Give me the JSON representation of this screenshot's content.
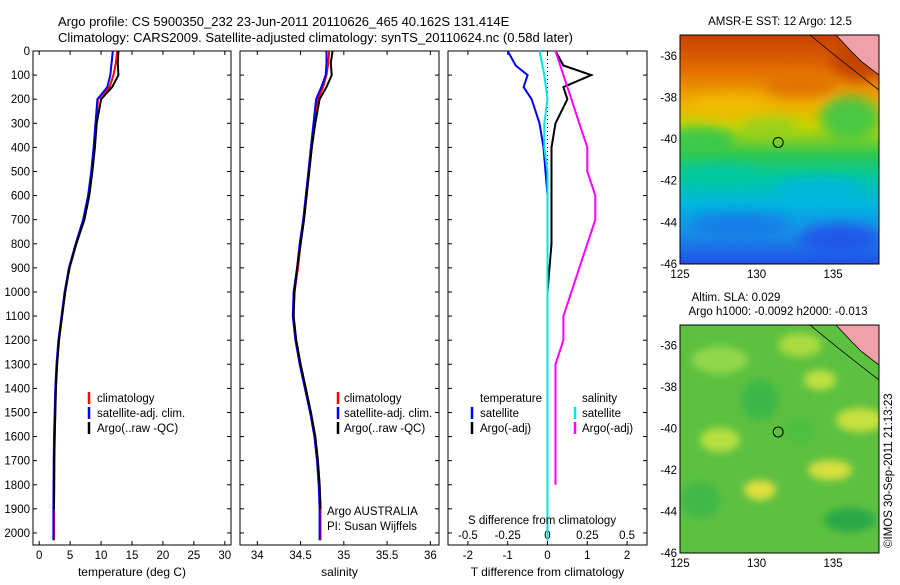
{
  "header": {
    "line1": "Argo profile: CS 5900350_232 23-Jun-2011 20110626_465 40.162S 131.414E",
    "line2": "Climatology: CARS2009. Satellite-adjusted climatology: synTS_20110624.nc (0.58d later)"
  },
  "watermark": "©IMOS 30-Sep-2011 21:13:23",
  "colors": {
    "climatology": "#ff0000",
    "satellite": "#0000ff",
    "argo": "#000000",
    "sal_satellite": "#00e5e5",
    "sal_argo": "#ff00ff"
  },
  "chart_data": [
    {
      "type": "line",
      "name": "temperature",
      "xlabel": "temperature (deg C)",
      "ylabel": "",
      "xlim": [
        -1,
        31
      ],
      "ylim": [
        2050,
        0
      ],
      "xticks": [
        0,
        5,
        10,
        15,
        20,
        25,
        30
      ],
      "yticks": [
        0,
        100,
        200,
        300,
        400,
        500,
        600,
        700,
        800,
        900,
        1000,
        1100,
        1200,
        1300,
        1400,
        1500,
        1600,
        1700,
        1800,
        1900,
        2000
      ],
      "legend": [
        "climatology",
        "satellite-adj. clim.",
        "Argo(..raw -QC)"
      ],
      "series": [
        {
          "name": "climatology",
          "color": "#ff0000",
          "x": [
            12.6,
            12.4,
            12.0,
            11.4,
            9.5,
            9.2,
            8.9,
            8.5,
            8.0,
            7.2,
            6.0,
            4.9,
            4.2,
            3.7,
            3.2,
            2.9,
            2.7,
            2.6,
            2.5,
            2.45,
            2.4,
            2.4
          ],
          "y": [
            0,
            50,
            100,
            150,
            200,
            300,
            400,
            500,
            600,
            700,
            800,
            900,
            1000,
            1100,
            1200,
            1300,
            1400,
            1500,
            1600,
            1700,
            1900,
            2030
          ]
        },
        {
          "name": "satellite-adj. clim.",
          "color": "#0000ff",
          "x": [
            11.9,
            11.7,
            11.5,
            11.0,
            9.4,
            9.1,
            8.8,
            8.4,
            7.9,
            7.1,
            5.9,
            4.8,
            4.1,
            3.6,
            3.1,
            2.8,
            2.6,
            2.5,
            2.4,
            2.35,
            2.3,
            2.3
          ],
          "y": [
            0,
            50,
            100,
            150,
            200,
            300,
            400,
            500,
            600,
            700,
            800,
            900,
            1000,
            1100,
            1200,
            1300,
            1400,
            1500,
            1600,
            1700,
            1900,
            2030
          ]
        },
        {
          "name": "Argo(..raw -QC)",
          "color": "#000000",
          "x": [
            12.8,
            12.7,
            12.8,
            11.8,
            10.0,
            9.3,
            9.0,
            8.6,
            8.1,
            7.3,
            6.0,
            4.9,
            4.2,
            3.7,
            3.2,
            2.9,
            2.7,
            2.6,
            2.5,
            2.45,
            2.4
          ],
          "y": [
            0,
            50,
            100,
            150,
            200,
            300,
            400,
            500,
            600,
            700,
            800,
            900,
            1000,
            1100,
            1200,
            1300,
            1400,
            1500,
            1600,
            1700,
            1900
          ]
        }
      ]
    },
    {
      "type": "line",
      "name": "salinity",
      "xlabel": "salinity",
      "xlim": [
        33.8,
        36.1
      ],
      "ylim": [
        2050,
        0
      ],
      "xticks": [
        34,
        34.5,
        35,
        35.5,
        36
      ],
      "xticklabels": [
        "34",
        "34.5",
        "35",
        "35.5",
        "36"
      ],
      "legend": [
        "climatology",
        "satellite-adj. clim.",
        "Argo(..raw -QC)"
      ],
      "annotation": [
        "Argo AUSTRALIA",
        "PI: Susan Wijffels"
      ],
      "series": [
        {
          "name": "climatology",
          "color": "#ff0000",
          "x": [
            34.83,
            34.82,
            34.8,
            34.76,
            34.7,
            34.66,
            34.63,
            34.6,
            34.57,
            34.54,
            34.5,
            34.47,
            34.43,
            34.42,
            34.45,
            34.5,
            34.56,
            34.62,
            34.67,
            34.7,
            34.72,
            34.73,
            34.73
          ],
          "y": [
            0,
            50,
            100,
            150,
            200,
            300,
            400,
            500,
            600,
            700,
            800,
            900,
            1000,
            1100,
            1200,
            1300,
            1400,
            1500,
            1600,
            1700,
            1800,
            1900,
            2030
          ]
        },
        {
          "name": "satellite-adj. clim.",
          "color": "#0000ff",
          "x": [
            34.8,
            34.8,
            34.79,
            34.74,
            34.68,
            34.65,
            34.62,
            34.59,
            34.56,
            34.53,
            34.49,
            34.46,
            34.42,
            34.41,
            34.44,
            34.49,
            34.55,
            34.61,
            34.66,
            34.69,
            34.71,
            34.72,
            34.72
          ],
          "y": [
            0,
            50,
            100,
            150,
            200,
            300,
            400,
            500,
            600,
            700,
            800,
            900,
            1000,
            1100,
            1200,
            1300,
            1400,
            1500,
            1600,
            1700,
            1800,
            1900,
            2030
          ]
        },
        {
          "name": "Argo(..raw -QC)",
          "color": "#000000",
          "x": [
            34.87,
            34.85,
            34.86,
            34.8,
            34.72,
            34.67,
            34.63,
            34.6,
            34.57,
            34.54,
            34.5,
            34.46,
            34.43,
            34.42,
            34.45,
            34.5,
            34.56,
            34.62,
            34.67,
            34.7,
            34.72,
            34.73
          ],
          "y": [
            0,
            50,
            100,
            150,
            200,
            300,
            400,
            500,
            600,
            700,
            800,
            900,
            1000,
            1100,
            1200,
            1300,
            1400,
            1500,
            1600,
            1700,
            1800,
            1900
          ]
        }
      ]
    },
    {
      "type": "line",
      "name": "difference",
      "xlabel": "T difference from climatology",
      "x2label": "S difference from climatology",
      "xlim": [
        -2.5,
        2.5
      ],
      "ylim": [
        2050,
        0
      ],
      "xticks": [
        -2,
        -1,
        0,
        1,
        2
      ],
      "x2ticklabels": [
        "-0.5",
        "-0.25",
        "0",
        "0.25",
        "0.5"
      ],
      "legend_temperature_title": "temperature",
      "legend_salinity_title": "salinity",
      "legend_temperature": [
        "satellite",
        "Argo(-adj)"
      ],
      "legend_salinity": [
        "satellite",
        "Argo(-adj)"
      ],
      "series": [
        {
          "name": "temperature satellite",
          "color": "#0000ff",
          "x": [
            -1.0,
            -0.8,
            -0.5,
            -0.6,
            -0.4,
            -0.2,
            -0.1,
            -0.05,
            0,
            0,
            0,
            0,
            0,
            0,
            0,
            0,
            0,
            0,
            0,
            0
          ],
          "y": [
            0,
            60,
            100,
            150,
            200,
            300,
            400,
            500,
            600,
            700,
            800,
            900,
            1000,
            1100,
            1200,
            1300,
            1400,
            1600,
            1800,
            2030
          ]
        },
        {
          "name": "temperature Argo(-adj)",
          "color": "#000000",
          "x": [
            0.2,
            0.4,
            1.1,
            0.4,
            0.5,
            0.2,
            0.1,
            0.1,
            0.1,
            0.1,
            0.1,
            0.05,
            0,
            0,
            0,
            0,
            0,
            0,
            0
          ],
          "y": [
            0,
            60,
            100,
            150,
            200,
            300,
            400,
            500,
            600,
            700,
            800,
            900,
            1000,
            1100,
            1200,
            1300,
            1400,
            1600,
            1800
          ]
        },
        {
          "name": "salinity satellite",
          "color": "#00e5e5",
          "x": [
            -0.05,
            -0.02,
            0,
            -0.02,
            -0.02,
            0,
            0,
            0,
            0,
            0,
            0,
            0,
            0,
            0,
            0,
            0,
            0,
            0
          ],
          "y": [
            0,
            100,
            200,
            300,
            400,
            500,
            600,
            700,
            800,
            900,
            1000,
            1100,
            1200,
            1300,
            1400,
            1600,
            1800,
            2030
          ]
        },
        {
          "name": "salinity Argo(-adj)",
          "color": "#ff00ff",
          "x": [
            0.05,
            0.1,
            0.15,
            0.2,
            0.25,
            0.25,
            0.3,
            0.3,
            0.25,
            0.2,
            0.15,
            0.1,
            0.1,
            0.05,
            0.05,
            0.05,
            0.05
          ],
          "y": [
            0,
            100,
            200,
            300,
            400,
            500,
            600,
            700,
            800,
            900,
            1000,
            1100,
            1200,
            1300,
            1400,
            1600,
            1800
          ]
        }
      ]
    },
    {
      "type": "heatmap",
      "name": "sst-map",
      "title": "AMSR-E SST: 12 Argo: 12.5",
      "xlim": [
        125,
        138
      ],
      "ylim": [
        -46,
        -35
      ],
      "xticks": [
        125,
        130,
        135
      ],
      "yticks": [
        -36,
        -38,
        -40,
        -42,
        -44,
        -46
      ],
      "marker": {
        "lon": 131.414,
        "lat": -40.162
      }
    },
    {
      "type": "heatmap",
      "name": "sla-map",
      "title": [
        "Altim. SLA: 0.029",
        "Argo h1000: -0.0092 h2000: -0.013"
      ],
      "xlim": [
        125,
        138
      ],
      "ylim": [
        -46,
        -35
      ],
      "xticks": [
        125,
        130,
        135
      ],
      "yticks": [
        -36,
        -38,
        -40,
        -42,
        -44,
        -46
      ],
      "marker": {
        "lon": 131.414,
        "lat": -40.162
      }
    }
  ]
}
